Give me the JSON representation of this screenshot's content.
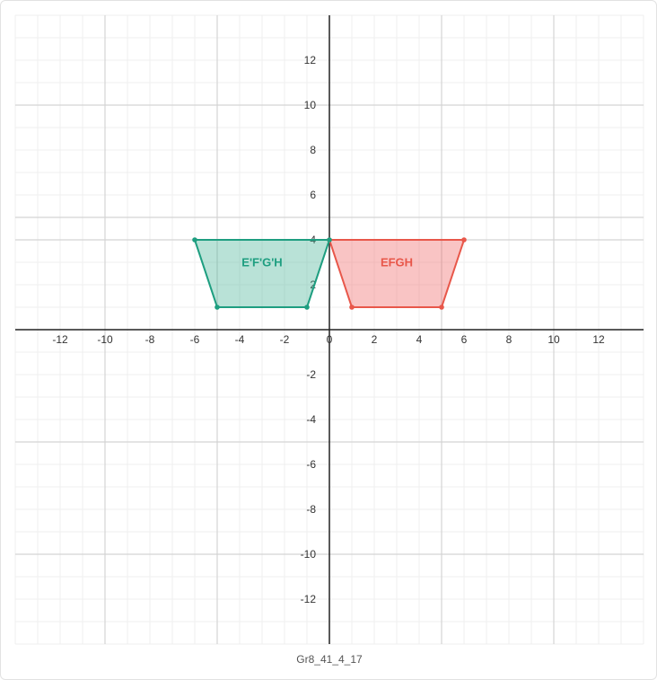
{
  "caption": "Gr8_41_4_17",
  "plane": {
    "xlim": [
      -14,
      14
    ],
    "ylim": [
      -14,
      14
    ],
    "tick_step": 2,
    "minor_step": 1,
    "major_grid_step": 5
  },
  "shapes": [
    {
      "name": "original",
      "label": "EFGH",
      "color": "#e8574a",
      "fill": "rgba(240,100,100,0.38)",
      "vertices": [
        [
          0,
          4
        ],
        [
          6,
          4
        ],
        [
          5,
          1
        ],
        [
          1,
          1
        ]
      ]
    },
    {
      "name": "image",
      "label": "E'F'G'H",
      "color": "#1e9e80",
      "fill": "rgba(70,180,150,0.38)",
      "vertices": [
        [
          -6,
          4
        ],
        [
          0,
          4
        ],
        [
          -1,
          1
        ],
        [
          -5,
          1
        ]
      ]
    }
  ]
}
